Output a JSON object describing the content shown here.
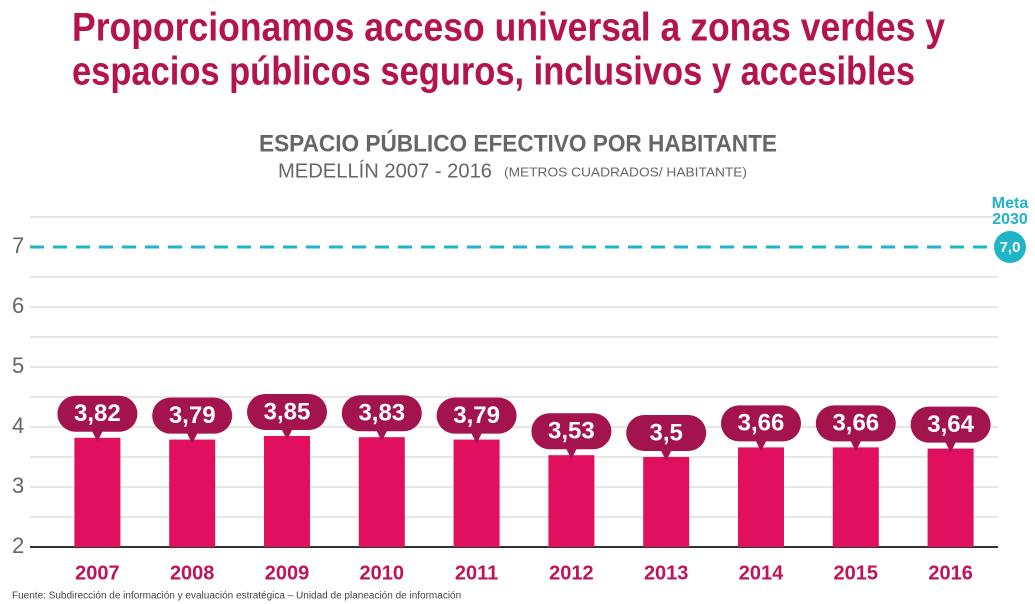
{
  "chart_data": {
    "type": "bar",
    "title": [
      "Proporcionamos acceso universal a zonas verdes y",
      "espacios públicos seguros, inclusivos y accesibles"
    ],
    "subtitle": "ESPACIO PÚBLICO EFECTIVO POR HABITANTE",
    "subtitle2": "MEDELLÍN 2007 - 2016",
    "units": "(METROS CUADRADOS/ HABITANTE)",
    "categories": [
      "2007",
      "2008",
      "2009",
      "2010",
      "2011",
      "2012",
      "2013",
      "2014",
      "2015",
      "2016"
    ],
    "values": [
      3.82,
      3.79,
      3.85,
      3.83,
      3.79,
      3.53,
      3.5,
      3.66,
      3.66,
      3.64
    ],
    "value_labels": [
      "3,82",
      "3,79",
      "3,85",
      "3,83",
      "3,79",
      "3,53",
      "3,5",
      "3,66",
      "3,66",
      "3,64"
    ],
    "color": "#e0105f",
    "label_color": "#a3134e",
    "ylim": [
      2,
      7.5
    ],
    "yticks": [
      2,
      3,
      4,
      5,
      6,
      7
    ],
    "grid": true,
    "grid_lines": [
      2.5,
      3.5,
      4.5,
      5.5,
      6.5,
      7.5
    ],
    "target": {
      "value": 7,
      "label": "7,0",
      "name": [
        "Meta",
        "2030"
      ],
      "color": "#1fb4c8"
    },
    "source": "Fuente: Subdirección de información y evaluación estratégica – Unidad de planeación de información"
  }
}
